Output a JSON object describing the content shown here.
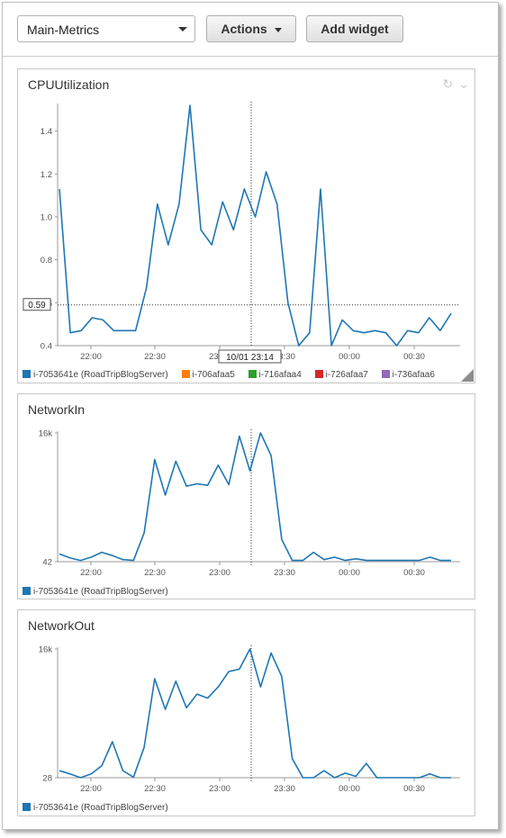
{
  "toolbar": {
    "dashboard_select_value": "Main-Metrics",
    "actions_label": "Actions",
    "add_widget_label": "Add widget"
  },
  "widgets": [
    {
      "title": "CPUUtilization",
      "icons": [
        "refresh-icon",
        "chevron-down-icon"
      ],
      "crosshair_value": "0.59",
      "crosshair_time": "10/01 23:14",
      "legend": [
        {
          "label": "i-7053641e (RoadTripBlogServer)",
          "color": "#1f77b4"
        },
        {
          "label": "i-706afaa5",
          "color": "#ff7f0e"
        },
        {
          "label": "i-716afaa4",
          "color": "#2ca02c"
        },
        {
          "label": "i-726afaa7",
          "color": "#d62728"
        },
        {
          "label": "i-736afaa6",
          "color": "#9467bd"
        }
      ]
    },
    {
      "title": "NetworkIn",
      "legend": [
        {
          "label": "i-7053641e (RoadTripBlogServer)",
          "color": "#1f77b4"
        }
      ]
    },
    {
      "title": "NetworkOut",
      "legend": [
        {
          "label": "i-7053641e (RoadTripBlogServer)",
          "color": "#1f77b4"
        }
      ]
    }
  ],
  "chart_data": [
    {
      "type": "line",
      "title": "CPUUtilization",
      "x_tick_labels": [
        "22:00",
        "22:30",
        "23:00",
        "23:30",
        "00:00",
        "00:30"
      ],
      "y_tick_labels": [
        "0.4",
        "0.6",
        "0.8",
        "1.0",
        "1.2",
        "1.4"
      ],
      "ylim": [
        0.4,
        1.5
      ],
      "series": [
        {
          "name": "i-7053641e (RoadTripBlogServer)",
          "color": "#1f77b4",
          "values": [
            1.13,
            0.46,
            0.47,
            0.53,
            0.52,
            0.47,
            0.47,
            0.47,
            0.67,
            1.06,
            0.87,
            1.06,
            1.52,
            0.94,
            0.87,
            1.07,
            0.94,
            1.13,
            1.0,
            1.21,
            1.06,
            0.6,
            0.4,
            0.46,
            1.13,
            0.4,
            0.52,
            0.47,
            0.46,
            0.47,
            0.46,
            0.4,
            0.47,
            0.46,
            0.53,
            0.47,
            0.55
          ]
        }
      ]
    },
    {
      "type": "line",
      "title": "NetworkIn",
      "x_tick_labels": [
        "22:00",
        "22:30",
        "23:00",
        "23:30",
        "00:00",
        "00:30"
      ],
      "y_tick_labels": [
        "42",
        "16k"
      ],
      "ylim": [
        42,
        16000
      ],
      "series": [
        {
          "name": "i-7053641e (RoadTripBlogServer)",
          "color": "#1f77b4",
          "values": [
            1000,
            500,
            200,
            600,
            1200,
            800,
            300,
            200,
            3600,
            12700,
            8300,
            12500,
            9400,
            9700,
            9500,
            12000,
            9600,
            15600,
            11300,
            16000,
            13200,
            2800,
            200,
            200,
            1200,
            300,
            600,
            200,
            400,
            200,
            200,
            200,
            200,
            200,
            200,
            600,
            200,
            200
          ]
        }
      ]
    },
    {
      "type": "line",
      "title": "NetworkOut",
      "x_tick_labels": [
        "22:00",
        "22:30",
        "23:00",
        "23:30",
        "00:00",
        "00:30"
      ],
      "y_tick_labels": [
        "28",
        "16k"
      ],
      "ylim": [
        28,
        16000
      ],
      "series": [
        {
          "name": "i-7053641e (RoadTripBlogServer)",
          "color": "#1f77b4",
          "values": [
            900,
            500,
            0,
            500,
            1500,
            4500,
            900,
            100,
            3800,
            12300,
            8500,
            12000,
            8700,
            10400,
            9900,
            11300,
            13200,
            13500,
            16000,
            11300,
            15500,
            12600,
            2400,
            0,
            0,
            900,
            0,
            600,
            200,
            1800,
            0,
            0,
            0,
            0,
            0,
            500,
            0,
            0
          ]
        }
      ]
    }
  ]
}
